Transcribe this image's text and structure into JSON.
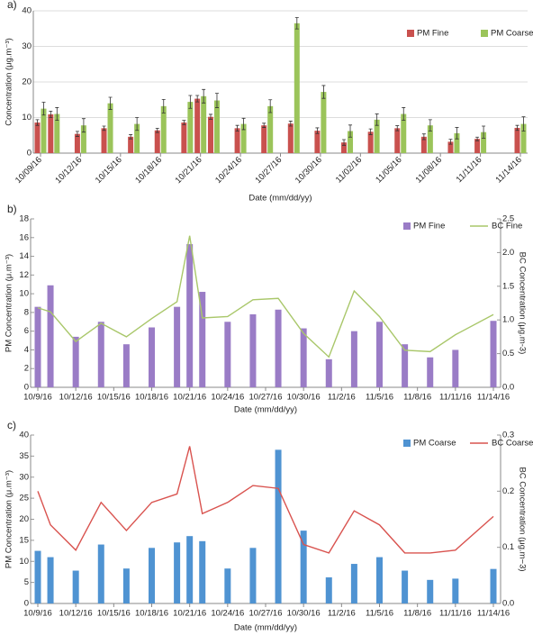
{
  "chart_data": [
    {
      "type": "grouped_bar",
      "panel": "a)",
      "xlabel": "Date (mm/dd/yy)",
      "ylabel": "Concentration (μg.m⁻³)",
      "x": [
        "10/09/16",
        "10/10/16",
        "10/12/16",
        "10/14/16",
        "10/16/16",
        "10/18/16",
        "10/20/16",
        "10/21/16",
        "10/22/16",
        "10/24/16",
        "10/26/16",
        "10/28/16",
        "10/30/16",
        "11/01/16",
        "11/03/16",
        "11/05/16",
        "11/07/16",
        "11/09/16",
        "11/11/16",
        "11/14/16"
      ],
      "xlim": [
        "10/09/16",
        "11/14/16"
      ],
      "xticks": [
        "10/09/16",
        "10/12/16",
        "10/15/16",
        "10/18/16",
        "10/21/16",
        "10/24/16",
        "10/27/16",
        "10/30/16",
        "11/02/16",
        "11/05/16",
        "11/08/16",
        "11/11/16",
        "11/14/16"
      ],
      "ylim": [
        0,
        40
      ],
      "yticks": [
        0,
        10,
        20,
        30,
        40
      ],
      "grid": true,
      "legend": "upper right",
      "series": [
        {
          "name": "PM Fine",
          "type": "bar",
          "color": "#c9514e",
          "values": [
            8.6,
            10.9,
            5.4,
            7.0,
            4.6,
            6.4,
            8.6,
            15.3,
            10.2,
            7.0,
            7.8,
            8.3,
            6.3,
            3.0,
            6.0,
            7.0,
            4.6,
            3.2,
            4.0,
            7.1
          ],
          "errors": [
            0.8,
            0.9,
            0.7,
            0.6,
            0.6,
            0.6,
            0.6,
            0.9,
            0.7,
            0.8,
            0.6,
            0.7,
            0.8,
            0.8,
            0.8,
            0.7,
            0.8,
            0.7,
            0.5,
            0.7
          ]
        },
        {
          "name": "PM Coarse",
          "type": "bar",
          "color": "#9bc45a",
          "values": [
            12.5,
            11.0,
            7.8,
            14.0,
            8.2,
            13.2,
            14.4,
            16.0,
            14.8,
            8.2,
            13.2,
            36.5,
            17.2,
            6.2,
            9.4,
            11.0,
            7.8,
            5.6,
            5.9,
            8.2
          ],
          "errors": [
            1.8,
            1.8,
            1.9,
            1.7,
            1.8,
            1.9,
            1.8,
            1.9,
            2.0,
            1.6,
            1.8,
            1.6,
            1.8,
            1.7,
            1.6,
            1.8,
            1.6,
            1.6,
            1.7,
            2.0
          ]
        }
      ]
    },
    {
      "type": "combo",
      "panel": "b)",
      "xlabel": "Date (mm/dd/yy)",
      "ylabel": "PM Concentration (μ.m⁻³)",
      "y2label": "BC Concentration (μg.m-3)",
      "x": [
        "10/9/16",
        "10/10/16",
        "10/12/16",
        "10/14/16",
        "10/16/16",
        "10/18/16",
        "10/20/16",
        "10/21/16",
        "10/22/16",
        "10/24/16",
        "10/26/16",
        "10/28/16",
        "10/30/16",
        "11/1/16",
        "11/3/16",
        "11/5/16",
        "11/7/16",
        "11/9/16",
        "11/11/16",
        "11/14/16"
      ],
      "xlim": [
        "10/9/16",
        "11/14/16"
      ],
      "xticks": [
        "10/9/16",
        "10/12/16",
        "10/15/16",
        "10/18/16",
        "10/21/16",
        "10/24/16",
        "10/27/16",
        "10/30/16",
        "11/2/16",
        "11/5/16",
        "11/8/16",
        "11/11/16",
        "11/14/16"
      ],
      "ylim": [
        0,
        18
      ],
      "yticks": [
        0,
        2,
        4,
        6,
        8,
        10,
        12,
        14,
        16,
        18
      ],
      "y2lim": [
        0,
        2.5
      ],
      "y2ticks": [
        {
          "value": 0,
          "label": "0.0"
        },
        0.5,
        {
          "value": 1,
          "label": "1.0"
        },
        1.5,
        {
          "value": 2,
          "label": "2.0"
        },
        2.5
      ],
      "grid": false,
      "legend": "upper right",
      "series": [
        {
          "name": "PM Fine",
          "type": "bar",
          "color": "#9a7cc6",
          "values": [
            8.6,
            10.9,
            5.4,
            7.0,
            4.6,
            6.4,
            8.6,
            15.3,
            10.2,
            7.0,
            7.8,
            8.3,
            6.3,
            3.0,
            6.0,
            7.0,
            4.6,
            3.2,
            4.0,
            7.1
          ]
        },
        {
          "name": "BC Fine",
          "type": "line",
          "axis": "y2",
          "color": "#a9c76a",
          "values": [
            1.18,
            1.12,
            0.68,
            0.95,
            0.75,
            1.02,
            1.27,
            2.25,
            1.03,
            1.05,
            1.3,
            1.32,
            0.8,
            0.45,
            1.43,
            1.05,
            0.55,
            0.53,
            0.78,
            1.08
          ]
        }
      ]
    },
    {
      "type": "combo",
      "panel": "c)",
      "xlabel": "Date (mm/dd/yy)",
      "ylabel": "PM Concentration (μ.m⁻³)",
      "y2label": "BC Concentration (μg.m−3)",
      "x": [
        "10/9/16",
        "10/10/16",
        "10/12/16",
        "10/14/16",
        "10/16/16",
        "10/18/16",
        "10/20/16",
        "10/21/16",
        "10/22/16",
        "10/24/16",
        "10/26/16",
        "10/28/16",
        "10/30/16",
        "11/1/16",
        "11/3/16",
        "11/5/16",
        "11/7/16",
        "11/9/16",
        "11/11/16",
        "11/14/16"
      ],
      "xlim": [
        "10/9/16",
        "11/14/16"
      ],
      "xticks": [
        "10/9/16",
        "10/12/16",
        "10/15/16",
        "10/18/16",
        "10/21/16",
        "10/24/16",
        "10/27/16",
        "10/30/16",
        "11/2/16",
        "11/5/16",
        "11/8/16",
        "11/11/16",
        "11/14/16"
      ],
      "ylim": [
        0,
        40
      ],
      "yticks": [
        0,
        5,
        10,
        15,
        20,
        25,
        30,
        35,
        40
      ],
      "y2lim": [
        0,
        0.3
      ],
      "y2ticks": [
        {
          "value": 0,
          "label": "0.0"
        },
        0.1,
        0.2,
        0.3
      ],
      "grid": false,
      "legend": "upper right",
      "series": [
        {
          "name": "PM Coarse",
          "type": "bar",
          "color": "#4f93d2",
          "values": [
            12.5,
            11.0,
            7.8,
            14.0,
            8.3,
            13.2,
            14.5,
            16.0,
            14.8,
            8.3,
            13.2,
            36.5,
            17.3,
            6.2,
            9.4,
            11.0,
            7.8,
            5.6,
            5.9,
            8.2
          ]
        },
        {
          "name": "BC Coarse",
          "type": "line",
          "axis": "y2",
          "color": "#d9534f",
          "values": [
            0.2,
            0.14,
            0.095,
            0.18,
            0.13,
            0.18,
            0.195,
            0.28,
            0.16,
            0.18,
            0.21,
            0.205,
            0.105,
            0.09,
            0.165,
            0.14,
            0.09,
            0.09,
            0.095,
            0.155
          ]
        }
      ]
    }
  ]
}
